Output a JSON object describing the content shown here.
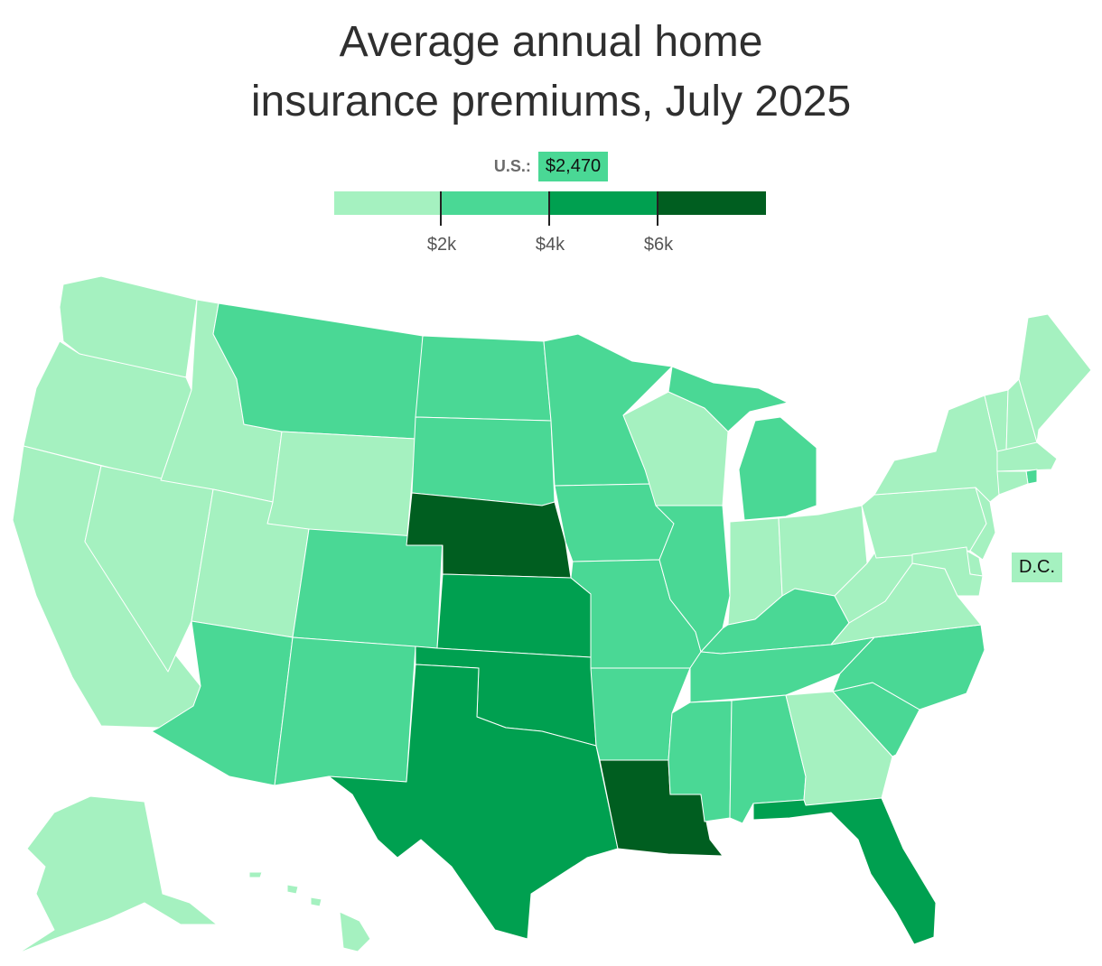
{
  "title": {
    "line1": "Average annual home",
    "line2": "insurance premiums, July 2025"
  },
  "us_average": {
    "label": "U.S.:",
    "value": "$2,470"
  },
  "legend": {
    "bins": [
      {
        "range": "below $2k",
        "color": "#a5f1c0"
      },
      {
        "range": "$2k–$4k",
        "color": "#4ad895"
      },
      {
        "range": "$4k–$6k",
        "color": "#00a050"
      },
      {
        "range": "$6k and above",
        "color": "#005e20"
      }
    ],
    "ticks": [
      "$2k",
      "$4k",
      "$6k"
    ]
  },
  "map_data": {
    "type": "choropleth",
    "region": "United States",
    "bins": {
      "light": "< $2k",
      "medium": "$2k–$4k",
      "dark": "$4k–$6k",
      "darkest": "> $6k"
    },
    "states": {
      "WA": "light",
      "OR": "light",
      "CA": "light",
      "NV": "light",
      "ID": "light",
      "UT": "light",
      "WY": "light",
      "MT": "medium",
      "AZ": "medium",
      "NM": "medium",
      "CO": "medium",
      "ND": "medium",
      "SD": "medium",
      "NE": "darkest",
      "KS": "dark",
      "OK": "dark",
      "TX": "dark",
      "MN": "medium",
      "IA": "medium",
      "MO": "medium",
      "AR": "medium",
      "LA": "darkest",
      "WI": "light",
      "IL": "medium",
      "MI": "medium",
      "IN": "light",
      "OH": "light",
      "KY": "medium",
      "TN": "medium",
      "MS": "medium",
      "AL": "medium",
      "GA": "light",
      "FL": "dark",
      "SC": "medium",
      "NC": "medium",
      "VA": "light",
      "WV": "light",
      "PA": "light",
      "NY": "light",
      "VT": "light",
      "NH": "light",
      "ME": "light",
      "MA": "light",
      "RI": "medium",
      "CT": "light",
      "NJ": "light",
      "DE": "light",
      "MD": "light",
      "DC": "light",
      "AK": "light",
      "HI": "light"
    },
    "callouts": [
      {
        "label": "D.C.",
        "bin": "light"
      }
    ]
  }
}
